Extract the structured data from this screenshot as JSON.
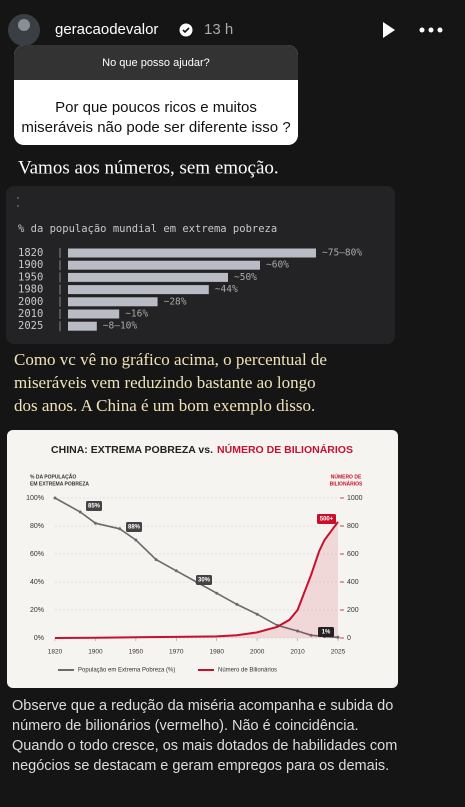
{
  "header": {
    "username": "geracaodevalor",
    "time": "13 h"
  },
  "question": {
    "prompt": "No que posso ajudar?",
    "lines": [
      "Por que poucos ricos e muitos",
      "miseráveis não pode ser diferente isso ?"
    ]
  },
  "caption_1": "Vamos aos números, sem emoção.",
  "caption_2": [
    "Como vc vê no gráfico acima, o percentual de",
    "miseráveis vem reduzindo bastante ao longo",
    "dos anos. A China é um bom exemplo disso."
  ],
  "caption_3": [
    "Observe que a redução da miséria acompanha e subida do",
    "número de bilionários (vermelho). Não é coincidência.",
    "Quando o todo cresce, os mais dotados de habilidades com",
    "negócios se destacam e geram empregos para os demais."
  ],
  "chart_data": [
    {
      "type": "bar",
      "orientation": "horizontal",
      "title": "% da população mundial em extrema pobreza",
      "categories": [
        "1820",
        "1900",
        "1950",
        "1980",
        "2000",
        "2010",
        "2025"
      ],
      "values": [
        77.5,
        60,
        50,
        44,
        28,
        16,
        9
      ],
      "value_labels": [
        "~75–80%",
        "~60%",
        "~50%",
        "~44%",
        "~28%",
        "~16%",
        "~8–10%"
      ],
      "color": "#b9bcc4"
    },
    {
      "type": "line",
      "title": [
        "CHINA: EXTREMA POBREZA vs.",
        "NÚMERO DE BILIONÁRIOS"
      ],
      "y_label": [
        "% DA POPULAÇÃO",
        "EM EXTREMA POBREZA"
      ],
      "y2_label": [
        "NÚMERO DE",
        "BILIONÁRIOS"
      ],
      "xlim": [
        1820,
        2025
      ],
      "xticks": [
        1820,
        1900,
        1950,
        1970,
        1980,
        2000,
        2010,
        2025
      ],
      "ylim": [
        0,
        100
      ],
      "yticks": [
        {
          "value": 0,
          "label": "0%"
        },
        {
          "value": 20,
          "label": "20%"
        },
        {
          "value": 40,
          "label": "40%"
        },
        {
          "value": 60,
          "label": "60%"
        },
        {
          "value": 80,
          "label": "80%"
        },
        {
          "value": 100,
          "label": "100%"
        }
      ],
      "y2lim": [
        0,
        1000
      ],
      "y2ticks": [
        0,
        200,
        400,
        600,
        800,
        1000
      ],
      "grid": true,
      "series": [
        {
          "name": "População em Extrema Pobreza (%)",
          "color": "#6b6b6b",
          "x": [
            1820,
            1870,
            1900,
            1930,
            1950,
            1960,
            1970,
            1975,
            1980,
            1990,
            2000,
            2005,
            2010,
            2015,
            2020,
            2025
          ],
          "values": [
            100,
            90,
            82,
            78,
            70,
            56,
            48,
            40,
            32,
            24,
            17,
            9,
            5,
            2,
            1,
            0.5
          ]
        },
        {
          "name": "Número de Bilionários",
          "color": "#c8102e",
          "axis": "y2",
          "x": [
            1820,
            1900,
            1950,
            1970,
            1980,
            1990,
            2000,
            2005,
            2008,
            2010,
            2012,
            2015,
            2018,
            2020,
            2025
          ],
          "values": [
            0,
            2,
            5,
            8,
            12,
            20,
            40,
            80,
            130,
            200,
            300,
            450,
            620,
            700,
            830
          ]
        }
      ],
      "annotations": [
        "85%",
        "88%",
        "30%",
        "1%",
        "500+"
      ]
    }
  ]
}
